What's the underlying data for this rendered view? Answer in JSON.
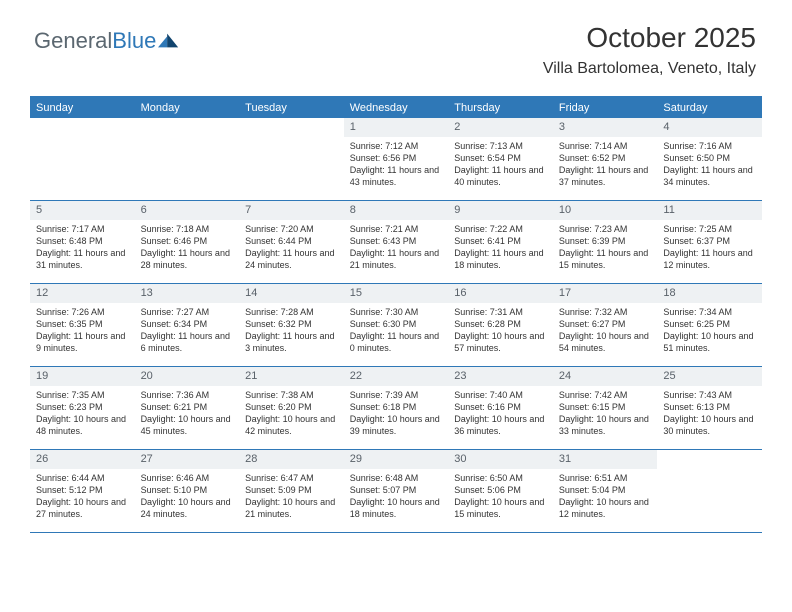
{
  "logo": {
    "first": "General",
    "second": "Blue"
  },
  "title": "October 2025",
  "location": "Villa Bartolomea, Veneto, Italy",
  "colors": {
    "accent": "#2f78b7",
    "header_text": "#ffffff",
    "daynum_bg": "#eef1f3",
    "text": "#333333",
    "logo_gray": "#5b6770"
  },
  "day_labels": [
    "Sunday",
    "Monday",
    "Tuesday",
    "Wednesday",
    "Thursday",
    "Friday",
    "Saturday"
  ],
  "weeks": [
    [
      {
        "empty": true
      },
      {
        "empty": true
      },
      {
        "empty": true
      },
      {
        "day": "1",
        "sunrise": "Sunrise: 7:12 AM",
        "sunset": "Sunset: 6:56 PM",
        "daylight": "Daylight: 11 hours and 43 minutes."
      },
      {
        "day": "2",
        "sunrise": "Sunrise: 7:13 AM",
        "sunset": "Sunset: 6:54 PM",
        "daylight": "Daylight: 11 hours and 40 minutes."
      },
      {
        "day": "3",
        "sunrise": "Sunrise: 7:14 AM",
        "sunset": "Sunset: 6:52 PM",
        "daylight": "Daylight: 11 hours and 37 minutes."
      },
      {
        "day": "4",
        "sunrise": "Sunrise: 7:16 AM",
        "sunset": "Sunset: 6:50 PM",
        "daylight": "Daylight: 11 hours and 34 minutes."
      }
    ],
    [
      {
        "day": "5",
        "sunrise": "Sunrise: 7:17 AM",
        "sunset": "Sunset: 6:48 PM",
        "daylight": "Daylight: 11 hours and 31 minutes."
      },
      {
        "day": "6",
        "sunrise": "Sunrise: 7:18 AM",
        "sunset": "Sunset: 6:46 PM",
        "daylight": "Daylight: 11 hours and 28 minutes."
      },
      {
        "day": "7",
        "sunrise": "Sunrise: 7:20 AM",
        "sunset": "Sunset: 6:44 PM",
        "daylight": "Daylight: 11 hours and 24 minutes."
      },
      {
        "day": "8",
        "sunrise": "Sunrise: 7:21 AM",
        "sunset": "Sunset: 6:43 PM",
        "daylight": "Daylight: 11 hours and 21 minutes."
      },
      {
        "day": "9",
        "sunrise": "Sunrise: 7:22 AM",
        "sunset": "Sunset: 6:41 PM",
        "daylight": "Daylight: 11 hours and 18 minutes."
      },
      {
        "day": "10",
        "sunrise": "Sunrise: 7:23 AM",
        "sunset": "Sunset: 6:39 PM",
        "daylight": "Daylight: 11 hours and 15 minutes."
      },
      {
        "day": "11",
        "sunrise": "Sunrise: 7:25 AM",
        "sunset": "Sunset: 6:37 PM",
        "daylight": "Daylight: 11 hours and 12 minutes."
      }
    ],
    [
      {
        "day": "12",
        "sunrise": "Sunrise: 7:26 AM",
        "sunset": "Sunset: 6:35 PM",
        "daylight": "Daylight: 11 hours and 9 minutes."
      },
      {
        "day": "13",
        "sunrise": "Sunrise: 7:27 AM",
        "sunset": "Sunset: 6:34 PM",
        "daylight": "Daylight: 11 hours and 6 minutes."
      },
      {
        "day": "14",
        "sunrise": "Sunrise: 7:28 AM",
        "sunset": "Sunset: 6:32 PM",
        "daylight": "Daylight: 11 hours and 3 minutes."
      },
      {
        "day": "15",
        "sunrise": "Sunrise: 7:30 AM",
        "sunset": "Sunset: 6:30 PM",
        "daylight": "Daylight: 11 hours and 0 minutes."
      },
      {
        "day": "16",
        "sunrise": "Sunrise: 7:31 AM",
        "sunset": "Sunset: 6:28 PM",
        "daylight": "Daylight: 10 hours and 57 minutes."
      },
      {
        "day": "17",
        "sunrise": "Sunrise: 7:32 AM",
        "sunset": "Sunset: 6:27 PM",
        "daylight": "Daylight: 10 hours and 54 minutes."
      },
      {
        "day": "18",
        "sunrise": "Sunrise: 7:34 AM",
        "sunset": "Sunset: 6:25 PM",
        "daylight": "Daylight: 10 hours and 51 minutes."
      }
    ],
    [
      {
        "day": "19",
        "sunrise": "Sunrise: 7:35 AM",
        "sunset": "Sunset: 6:23 PM",
        "daylight": "Daylight: 10 hours and 48 minutes."
      },
      {
        "day": "20",
        "sunrise": "Sunrise: 7:36 AM",
        "sunset": "Sunset: 6:21 PM",
        "daylight": "Daylight: 10 hours and 45 minutes."
      },
      {
        "day": "21",
        "sunrise": "Sunrise: 7:38 AM",
        "sunset": "Sunset: 6:20 PM",
        "daylight": "Daylight: 10 hours and 42 minutes."
      },
      {
        "day": "22",
        "sunrise": "Sunrise: 7:39 AM",
        "sunset": "Sunset: 6:18 PM",
        "daylight": "Daylight: 10 hours and 39 minutes."
      },
      {
        "day": "23",
        "sunrise": "Sunrise: 7:40 AM",
        "sunset": "Sunset: 6:16 PM",
        "daylight": "Daylight: 10 hours and 36 minutes."
      },
      {
        "day": "24",
        "sunrise": "Sunrise: 7:42 AM",
        "sunset": "Sunset: 6:15 PM",
        "daylight": "Daylight: 10 hours and 33 minutes."
      },
      {
        "day": "25",
        "sunrise": "Sunrise: 7:43 AM",
        "sunset": "Sunset: 6:13 PM",
        "daylight": "Daylight: 10 hours and 30 minutes."
      }
    ],
    [
      {
        "day": "26",
        "sunrise": "Sunrise: 6:44 AM",
        "sunset": "Sunset: 5:12 PM",
        "daylight": "Daylight: 10 hours and 27 minutes."
      },
      {
        "day": "27",
        "sunrise": "Sunrise: 6:46 AM",
        "sunset": "Sunset: 5:10 PM",
        "daylight": "Daylight: 10 hours and 24 minutes."
      },
      {
        "day": "28",
        "sunrise": "Sunrise: 6:47 AM",
        "sunset": "Sunset: 5:09 PM",
        "daylight": "Daylight: 10 hours and 21 minutes."
      },
      {
        "day": "29",
        "sunrise": "Sunrise: 6:48 AM",
        "sunset": "Sunset: 5:07 PM",
        "daylight": "Daylight: 10 hours and 18 minutes."
      },
      {
        "day": "30",
        "sunrise": "Sunrise: 6:50 AM",
        "sunset": "Sunset: 5:06 PM",
        "daylight": "Daylight: 10 hours and 15 minutes."
      },
      {
        "day": "31",
        "sunrise": "Sunrise: 6:51 AM",
        "sunset": "Sunset: 5:04 PM",
        "daylight": "Daylight: 10 hours and 12 minutes."
      },
      {
        "empty": true
      }
    ]
  ]
}
